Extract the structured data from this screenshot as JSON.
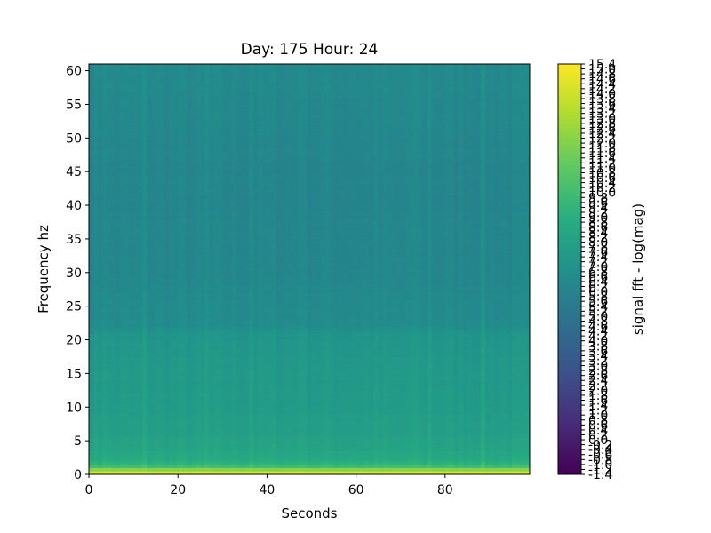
{
  "chart_data": {
    "type": "heatmap",
    "title": "Day: 175 Hour: 24",
    "xlabel": "Seconds",
    "ylabel": "Frequency hz",
    "xlim": [
      0,
      99
    ],
    "ylim": [
      0,
      61
    ],
    "xticks": [
      0,
      20,
      40,
      60,
      80
    ],
    "yticks": [
      0,
      5,
      10,
      15,
      20,
      25,
      30,
      35,
      40,
      45,
      50,
      55,
      60
    ],
    "grid": false,
    "colormap": "viridis",
    "colorbar": {
      "label": "signal fft - log(mag)",
      "range": [
        -1.4,
        15.4
      ],
      "ticks": [
        "15.4",
        "15.0",
        "14.8",
        "14.6",
        "14.4",
        "14.2",
        "14.0",
        "13.8",
        "13.6",
        "13.4",
        "13.2",
        "13.0",
        "12.8",
        "12.6",
        "12.4",
        "12.2",
        "12.0",
        "11.8",
        "11.6",
        "11.4",
        "11.2",
        "11.0",
        "10.8",
        "10.6",
        "10.4",
        "10.2",
        "10.0",
        "9.8",
        "9.6",
        "9.4",
        "9.2",
        "9.0",
        "8.8",
        "8.6",
        "8.4",
        "8.2",
        "8.0",
        "7.8",
        "7.6",
        "7.4",
        "7.2",
        "7.0",
        "6.8",
        "6.6",
        "6.4",
        "6.2",
        "6.0",
        "5.8",
        "5.6",
        "5.4",
        "5.2",
        "5.0",
        "4.8",
        "4.6",
        "4.4",
        "4.2",
        "4.0",
        "3.8",
        "3.6",
        "3.4",
        "3.2",
        "3.0",
        "2.8",
        "2.6",
        "2.4",
        "2.2",
        "2.0",
        "1.8",
        "1.6",
        "1.4",
        "1.2",
        "1.0",
        "0.8",
        "0.6",
        "0.4",
        "0.2",
        "0.0",
        "-0.2",
        "-0.4",
        "-0.6",
        "-0.8",
        "-1.0",
        "-1.2",
        "-1.4"
      ]
    },
    "frequency_profile": [
      {
        "freq": 0.0,
        "value": 15.0
      },
      {
        "freq": 0.5,
        "value": 14.0
      },
      {
        "freq": 1.0,
        "value": 10.5
      },
      {
        "freq": 2.0,
        "value": 8.8
      },
      {
        "freq": 4.0,
        "value": 8.3
      },
      {
        "freq": 7.0,
        "value": 7.9
      },
      {
        "freq": 12.0,
        "value": 7.6
      },
      {
        "freq": 18.0,
        "value": 7.4
      },
      {
        "freq": 21.0,
        "value": 7.2
      },
      {
        "freq": 22.0,
        "value": 6.7
      },
      {
        "freq": 30.0,
        "value": 6.3
      },
      {
        "freq": 45.0,
        "value": 6.2
      },
      {
        "freq": 61.0,
        "value": 6.5
      }
    ]
  }
}
